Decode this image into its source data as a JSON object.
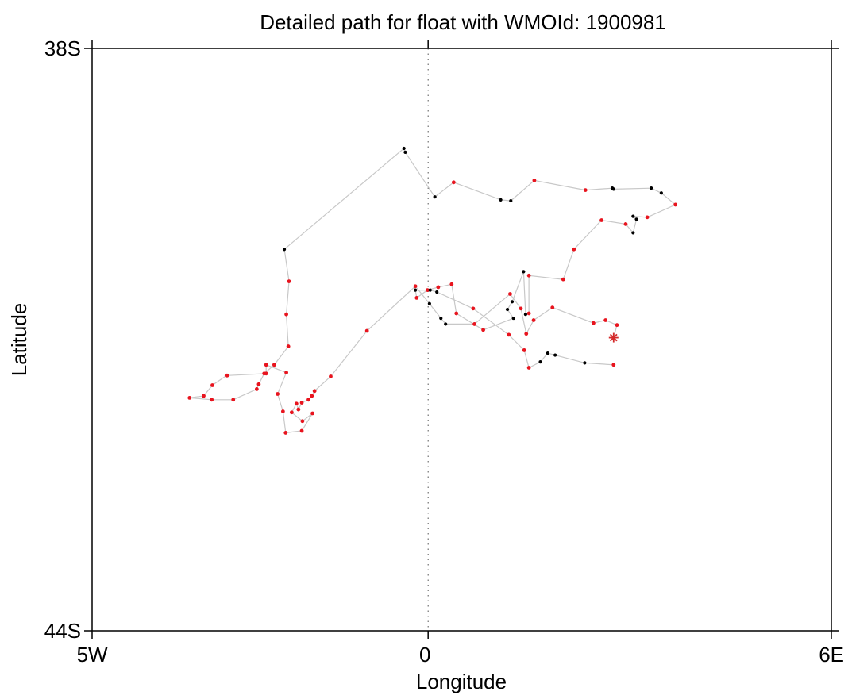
{
  "chart_data": {
    "type": "scatter",
    "title": "Detailed path for float with WMOId: 1900981",
    "xlabel": "Longitude",
    "ylabel": "Latitude",
    "xlim": [
      -5,
      6
    ],
    "ylim": [
      -44,
      -38
    ],
    "xticks": [
      {
        "value": -5,
        "label": "5W"
      },
      {
        "value": 0,
        "label": "0"
      },
      {
        "value": 6,
        "label": "6E"
      }
    ],
    "yticks": [
      {
        "value": -38,
        "label": "38S"
      },
      {
        "value": -44,
        "label": "44S"
      }
    ],
    "grid": false,
    "reference_line": {
      "axis": "x",
      "value": 0,
      "style": "dotted"
    },
    "colors": {
      "track": "#c8c8c8",
      "red_point": "#e8141e",
      "black_point": "#000000",
      "start_marker": "#d42a2a"
    },
    "start_marker": {
      "x": 2.76,
      "y": -40.98,
      "symbol": "asterisk"
    },
    "points": [
      {
        "x": 2.76,
        "y": -40.98,
        "c": "r"
      },
      {
        "x": 2.81,
        "y": -40.85,
        "c": "r"
      },
      {
        "x": 2.64,
        "y": -40.8,
        "c": "r"
      },
      {
        "x": 2.46,
        "y": -40.83,
        "c": "r"
      },
      {
        "x": 1.85,
        "y": -40.67,
        "c": "r"
      },
      {
        "x": 1.57,
        "y": -40.8,
        "c": "r"
      },
      {
        "x": 1.46,
        "y": -40.94,
        "c": "r"
      },
      {
        "x": 1.38,
        "y": -40.68,
        "c": "r"
      },
      {
        "x": 1.22,
        "y": -40.53,
        "c": "r"
      },
      {
        "x": 0.69,
        "y": -40.84,
        "c": "r"
      },
      {
        "x": 0.26,
        "y": -40.84,
        "c": "k"
      },
      {
        "x": 0.19,
        "y": -40.78,
        "c": "k"
      },
      {
        "x": 0.02,
        "y": -40.63,
        "c": "k"
      },
      {
        "x": -0.19,
        "y": -40.45,
        "c": "r"
      },
      {
        "x": -0.91,
        "y": -40.91,
        "c": "r"
      },
      {
        "x": -1.45,
        "y": -41.38,
        "c": "r"
      },
      {
        "x": -1.69,
        "y": -41.53,
        "c": "r"
      },
      {
        "x": -1.73,
        "y": -41.58,
        "c": "r"
      },
      {
        "x": -1.78,
        "y": -41.62,
        "c": "r"
      },
      {
        "x": -1.88,
        "y": -41.65,
        "c": "r"
      },
      {
        "x": -1.93,
        "y": -41.72,
        "c": "r"
      },
      {
        "x": -1.96,
        "y": -41.66,
        "c": "r"
      },
      {
        "x": -2.03,
        "y": -41.75,
        "c": "r"
      },
      {
        "x": -1.87,
        "y": -41.84,
        "c": "r"
      },
      {
        "x": -1.72,
        "y": -41.76,
        "c": "r"
      },
      {
        "x": -1.88,
        "y": -41.94,
        "c": "r"
      },
      {
        "x": -2.12,
        "y": -41.96,
        "c": "r"
      },
      {
        "x": -2.16,
        "y": -41.74,
        "c": "r"
      },
      {
        "x": -2.24,
        "y": -41.56,
        "c": "r"
      },
      {
        "x": -2.11,
        "y": -41.34,
        "c": "r"
      },
      {
        "x": -2.41,
        "y": -41.26,
        "c": "r"
      },
      {
        "x": -2.41,
        "y": -41.35,
        "c": "r"
      },
      {
        "x": -2.99,
        "y": -41.37,
        "c": "r"
      },
      {
        "x": -3.0,
        "y": -41.37,
        "c": "r"
      },
      {
        "x": -3.21,
        "y": -41.47,
        "c": "r"
      },
      {
        "x": -3.34,
        "y": -41.58,
        "c": "r"
      },
      {
        "x": -3.55,
        "y": -41.6,
        "c": "r"
      },
      {
        "x": -3.22,
        "y": -41.62,
        "c": "r"
      },
      {
        "x": -2.9,
        "y": -41.62,
        "c": "r"
      },
      {
        "x": -2.55,
        "y": -41.51,
        "c": "r"
      },
      {
        "x": -2.52,
        "y": -41.46,
        "c": "r"
      },
      {
        "x": -2.44,
        "y": -41.35,
        "c": "r"
      },
      {
        "x": -2.29,
        "y": -41.26,
        "c": "r"
      },
      {
        "x": -2.08,
        "y": -41.07,
        "c": "r"
      },
      {
        "x": -2.11,
        "y": -40.74,
        "c": "r"
      },
      {
        "x": -2.07,
        "y": -40.4,
        "c": "r"
      },
      {
        "x": -2.14,
        "y": -40.07,
        "c": "k"
      },
      {
        "x": -0.36,
        "y": -39.03,
        "c": "k"
      },
      {
        "x": -0.34,
        "y": -39.07,
        "c": "k"
      },
      {
        "x": 0.1,
        "y": -39.53,
        "c": "k"
      },
      {
        "x": 0.38,
        "y": -39.38,
        "c": "r"
      },
      {
        "x": 1.08,
        "y": -39.56,
        "c": "k"
      },
      {
        "x": 1.23,
        "y": -39.57,
        "c": "k"
      },
      {
        "x": 1.58,
        "y": -39.36,
        "c": "r"
      },
      {
        "x": 2.34,
        "y": -39.46,
        "c": "r"
      },
      {
        "x": 2.74,
        "y": -39.44,
        "c": "k"
      },
      {
        "x": 2.76,
        "y": -39.45,
        "c": "k"
      },
      {
        "x": 3.32,
        "y": -39.44,
        "c": "k"
      },
      {
        "x": 3.47,
        "y": -39.49,
        "c": "k"
      },
      {
        "x": 3.68,
        "y": -39.61,
        "c": "r"
      },
      {
        "x": 3.26,
        "y": -39.74,
        "c": "r"
      },
      {
        "x": 3.05,
        "y": -39.73,
        "c": "k"
      },
      {
        "x": 3.1,
        "y": -39.76,
        "c": "k"
      },
      {
        "x": 3.05,
        "y": -39.9,
        "c": "k"
      },
      {
        "x": 2.94,
        "y": -39.81,
        "c": "r"
      },
      {
        "x": 2.58,
        "y": -39.77,
        "c": "r"
      },
      {
        "x": 2.17,
        "y": -40.07,
        "c": "r"
      },
      {
        "x": 2.01,
        "y": -40.38,
        "c": "r"
      },
      {
        "x": 1.5,
        "y": -40.34,
        "c": "r"
      },
      {
        "x": 1.5,
        "y": -40.73,
        "c": "r"
      },
      {
        "x": 1.45,
        "y": -40.74,
        "c": "k"
      },
      {
        "x": 1.42,
        "y": -40.3,
        "c": "k"
      },
      {
        "x": 1.25,
        "y": -40.61,
        "c": "k"
      },
      {
        "x": 1.18,
        "y": -40.69,
        "c": "k"
      },
      {
        "x": 1.27,
        "y": -40.78,
        "c": "k"
      },
      {
        "x": 0.82,
        "y": -40.9,
        "c": "r"
      },
      {
        "x": 0.42,
        "y": -40.73,
        "c": "r"
      },
      {
        "x": 0.35,
        "y": -40.43,
        "c": "r"
      },
      {
        "x": 0.15,
        "y": -40.46,
        "c": "r"
      },
      {
        "x": -0.01,
        "y": -40.49,
        "c": "r"
      },
      {
        "x": -0.17,
        "y": -40.57,
        "c": "r"
      },
      {
        "x": -0.19,
        "y": -40.49,
        "c": "k"
      },
      {
        "x": 0.03,
        "y": -40.49,
        "c": "k"
      },
      {
        "x": 0.13,
        "y": -40.51,
        "c": "k"
      },
      {
        "x": 0.67,
        "y": -40.68,
        "c": "r"
      },
      {
        "x": 1.2,
        "y": -40.95,
        "c": "r"
      },
      {
        "x": 1.43,
        "y": -41.11,
        "c": "r"
      },
      {
        "x": 1.5,
        "y": -41.29,
        "c": "r"
      },
      {
        "x": 1.67,
        "y": -41.23,
        "c": "k"
      },
      {
        "x": 1.78,
        "y": -41.14,
        "c": "k"
      },
      {
        "x": 1.89,
        "y": -41.16,
        "c": "k"
      },
      {
        "x": 2.33,
        "y": -41.24,
        "c": "k"
      },
      {
        "x": 2.76,
        "y": -41.26,
        "c": "r"
      }
    ],
    "track_order": "as listed"
  }
}
